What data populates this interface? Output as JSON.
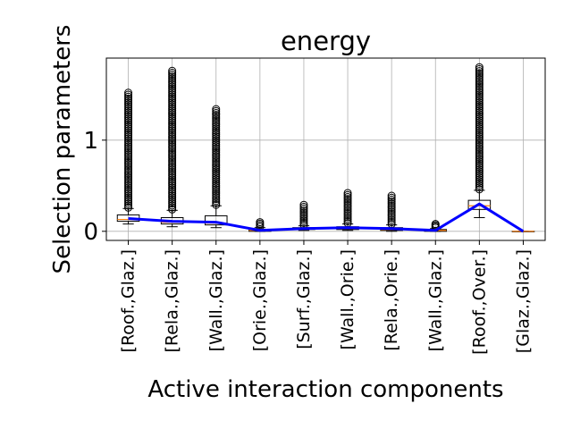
{
  "chart_data": {
    "type": "box",
    "title": "energy",
    "xlabel": "Active interaction components",
    "ylabel": "Selection parameters",
    "ylim": [
      -0.1,
      1.9
    ],
    "yticks": [
      0,
      1
    ],
    "grid": true,
    "categories": [
      "[Roof.,Glaz.]",
      "[Rela.,Glaz.]",
      "[Wall.,Glaz.]",
      "[Orie.,Glaz.]",
      "[Surf.,Glaz.]",
      "[Wall.,Orie.]",
      "[Rela.,Orie.]",
      "[Wall.,Glaz.]",
      "[Roof.,Over.]",
      "[Glaz.,Glaz.]"
    ],
    "boxes": [
      {
        "whisker_low": 0.08,
        "q1": 0.11,
        "median": 0.13,
        "q3": 0.18,
        "whisker_high": 0.25,
        "outlier_low": 0.26,
        "outlier_high": 1.52
      },
      {
        "whisker_low": 0.05,
        "q1": 0.08,
        "median": 0.1,
        "q3": 0.15,
        "whisker_high": 0.23,
        "outlier_low": 0.24,
        "outlier_high": 1.76
      },
      {
        "whisker_low": 0.04,
        "q1": 0.07,
        "median": 0.09,
        "q3": 0.17,
        "whisker_high": 0.28,
        "outlier_low": 0.29,
        "outlier_high": 1.34
      },
      {
        "whisker_low": 0.0,
        "q1": 0.0,
        "median": 0.01,
        "q3": 0.02,
        "whisker_high": 0.04,
        "outlier_low": 0.05,
        "outlier_high": 0.1
      },
      {
        "whisker_low": 0.01,
        "q1": 0.02,
        "median": 0.03,
        "q3": 0.04,
        "whisker_high": 0.06,
        "outlier_low": 0.07,
        "outlier_high": 0.29
      },
      {
        "whisker_low": 0.01,
        "q1": 0.02,
        "median": 0.03,
        "q3": 0.05,
        "whisker_high": 0.08,
        "outlier_low": 0.09,
        "outlier_high": 0.42
      },
      {
        "whisker_low": 0.0,
        "q1": 0.01,
        "median": 0.02,
        "q3": 0.04,
        "whisker_high": 0.07,
        "outlier_low": 0.08,
        "outlier_high": 0.39
      },
      {
        "whisker_low": 0.0,
        "q1": 0.0,
        "median": 0.01,
        "q3": 0.02,
        "whisker_high": 0.03,
        "outlier_low": 0.04,
        "outlier_high": 0.08
      },
      {
        "whisker_low": 0.15,
        "q1": 0.24,
        "median": 0.28,
        "q3": 0.34,
        "whisker_high": 0.45,
        "outlier_low": 0.46,
        "outlier_high": 1.8
      },
      {
        "whisker_low": 0.0,
        "q1": 0.0,
        "median": 0.0,
        "q3": 0.0,
        "whisker_high": 0.0,
        "outlier_low": null,
        "outlier_high": null
      }
    ],
    "mean_line": {
      "color": "#0000ff",
      "values": [
        0.14,
        0.11,
        0.1,
        0.01,
        0.03,
        0.04,
        0.03,
        0.01,
        0.3,
        0.0
      ]
    },
    "colors": {
      "box": "#000000",
      "median": "#ff7f0e",
      "outlier": "#000000",
      "grid": "#b0b0b0"
    }
  }
}
